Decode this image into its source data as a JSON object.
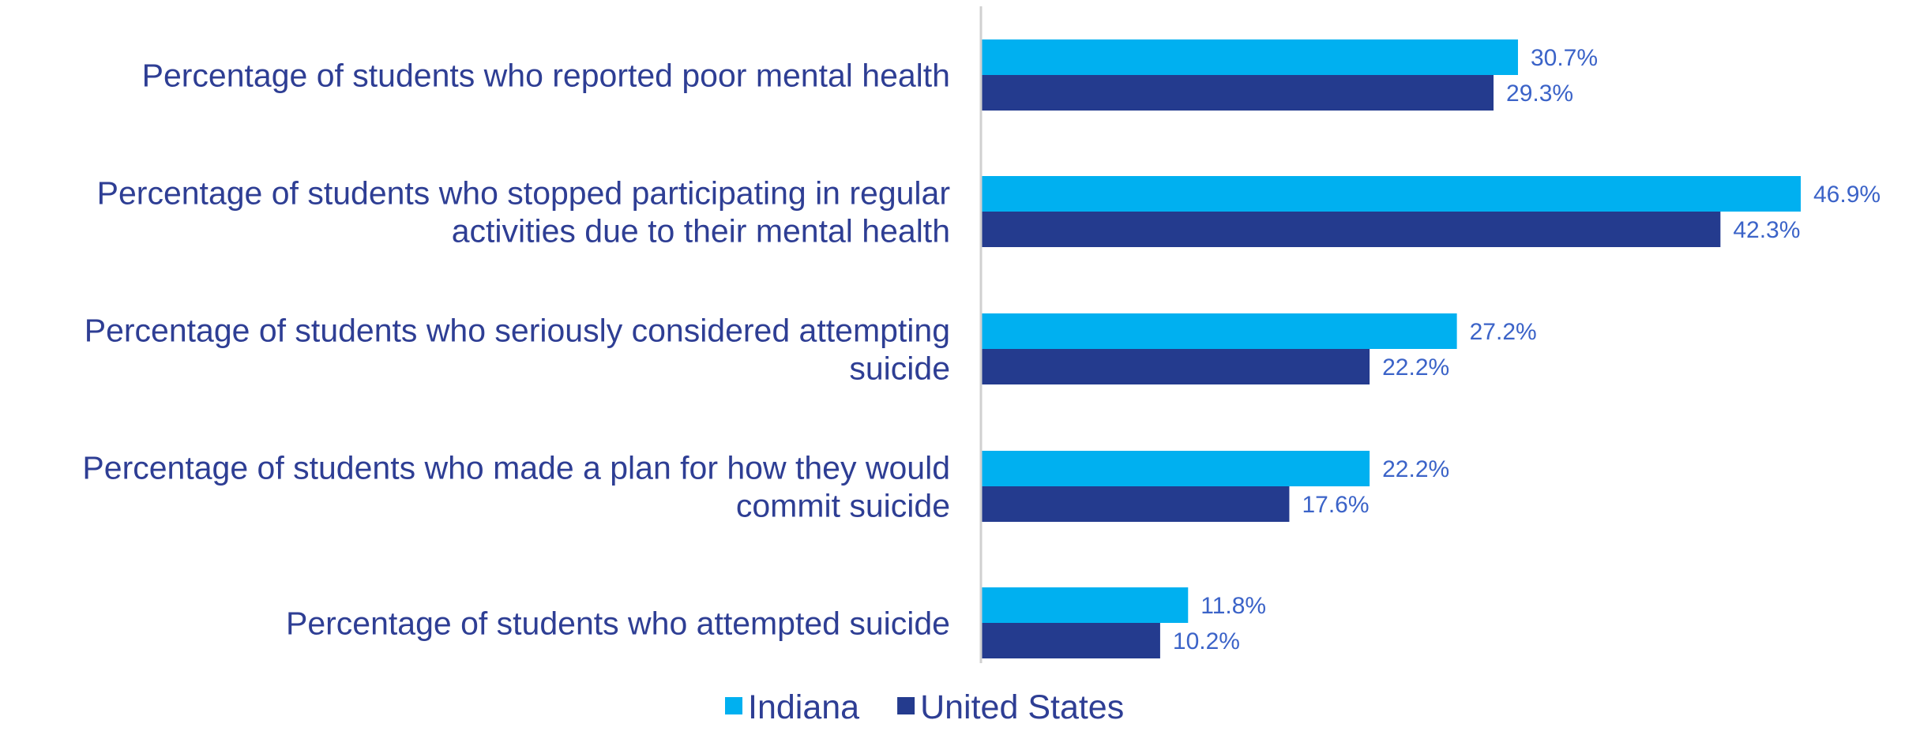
{
  "chart_data": {
    "type": "bar",
    "orientation": "horizontal",
    "title": "",
    "xlabel": "",
    "ylabel": "",
    "xlim": [
      0,
      50
    ],
    "grid": false,
    "legend": "bottom-center",
    "value_suffix": "%",
    "categories": [
      [
        "Percentage of students who reported poor mental health"
      ],
      [
        "Percentage of students who stopped participating in regular",
        "activities due to their mental health"
      ],
      [
        "Percentage of students who seriously considered attempting",
        "suicide"
      ],
      [
        "Percentage of students who made a plan for how they would",
        "commit suicide"
      ],
      [
        "Percentage of students who attempted suicide"
      ]
    ],
    "series": [
      {
        "name": "Indiana",
        "color": "#00B0F0",
        "values": [
          30.7,
          46.9,
          27.2,
          22.2,
          11.8
        ]
      },
      {
        "name": "United States",
        "color": "#243B8E",
        "values": [
          29.3,
          42.3,
          22.2,
          17.6,
          10.2
        ]
      }
    ],
    "colors": {
      "category_text": "#2E3E94",
      "value_label": "#3B63C8",
      "axis": "#D0D0D0"
    }
  }
}
